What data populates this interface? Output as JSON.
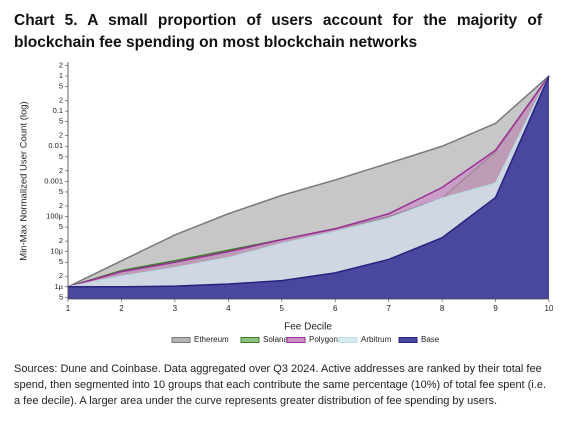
{
  "chart_data": {
    "type": "area",
    "title": "Chart 5. A small proportion of users account for the majority of blockchain fee spending on most blockchain networks",
    "x_label": "Fee Decile",
    "y_label": "Min-Max Normalized User Count (log)",
    "source": "Sources: Dune and Coinbase. Data aggregated over Q3 2024. Active addresses are ranked by their total fee spend, then segmented into 10 groups that each contribute the same percentage (10%) of total fee spent (i.e. a fee decile). A larger area under the curve represents greater distribution of fee spending by users.",
    "x": [
      1,
      2,
      3,
      4,
      5,
      6,
      7,
      8,
      9,
      10
    ],
    "xlim": [
      1,
      10
    ],
    "xticks": [
      1,
      2,
      3,
      4,
      5,
      6,
      7,
      8,
      9,
      10
    ],
    "ylim": [
      4.5e-07,
      2.5
    ],
    "log_scale_y": true,
    "yticks": [
      {
        "value": 5e-07,
        "label": "5"
      },
      {
        "value": 1e-06,
        "label": "1µ"
      },
      {
        "value": 2e-06,
        "label": "2"
      },
      {
        "value": 5e-06,
        "label": "5"
      },
      {
        "value": 1e-05,
        "label": "10µ"
      },
      {
        "value": 2e-05,
        "label": "2"
      },
      {
        "value": 5e-05,
        "label": "5"
      },
      {
        "value": 0.0001,
        "label": "100µ"
      },
      {
        "value": 0.0002,
        "label": "2"
      },
      {
        "value": 0.0005,
        "label": "5"
      },
      0.001,
      {
        "value": 0.002,
        "label": "2"
      },
      {
        "value": 0.005,
        "label": "5"
      },
      0.01,
      {
        "value": 0.02,
        "label": "2"
      },
      {
        "value": 0.05,
        "label": "5"
      },
      0.1,
      {
        "value": 0.2,
        "label": "2"
      },
      {
        "value": 0.5,
        "label": "5"
      },
      1,
      2
    ],
    "legend": "bottom",
    "series": [
      {
        "name": "Ethereum",
        "color": "#7a7a7a",
        "fill": "#b4b4b4",
        "values": [
          1e-06,
          5.5e-06,
          3e-05,
          0.00012,
          0.0004,
          0.0011,
          0.0033,
          0.01,
          0.045,
          1
        ]
      },
      {
        "name": "Solana",
        "color": "#3b7d2a",
        "fill": "#8fc27f",
        "values": [
          1e-06,
          2.9e-06,
          5.5e-06,
          1.1e-05,
          2.2e-05,
          4.5e-05,
          0.0001,
          0.00033,
          0.007,
          1
        ]
      },
      {
        "name": "Polygon",
        "color": "#9b2f96",
        "fill": "#c98fc6",
        "values": [
          1e-06,
          2.7e-06,
          5e-06,
          1e-05,
          2.2e-05,
          4.5e-05,
          0.00012,
          0.00067,
          0.0077,
          1
        ]
      },
      {
        "name": "Arbitrum",
        "color": "#bcdbe4",
        "fill": "#d6eaf0",
        "values": [
          1e-06,
          2e-06,
          3.5e-06,
          6.7e-06,
          1.7e-05,
          3.7e-05,
          8.8e-05,
          0.00033,
          0.00088,
          1
        ]
      },
      {
        "name": "Base",
        "color": "#26247e",
        "fill": "#4a479f",
        "values": [
          1e-06,
          1e-06,
          1.05e-06,
          1.2e-06,
          1.5e-06,
          2.5e-06,
          6e-06,
          2.5e-05,
          0.00035,
          1
        ]
      }
    ]
  }
}
